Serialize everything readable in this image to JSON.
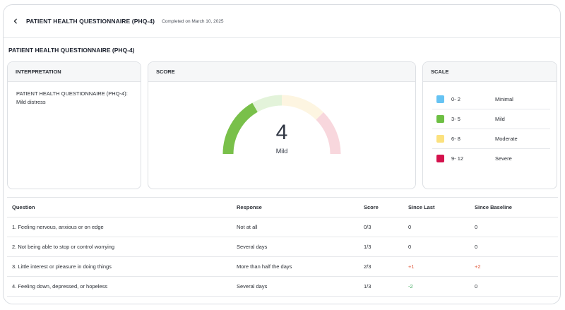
{
  "header": {
    "title": "PATIENT HEALTH QUESTIONNAIRE (PHQ-4)",
    "completed": "Completed on March 10, 2025"
  },
  "section_title": "PATIENT HEALTH QUESTIONNAIRE (PHQ-4)",
  "interpretation": {
    "heading": "INTERPRETATION",
    "text": "PATIENT HEALTH QUESTIONNAIRE (PHQ-4): Mild distress"
  },
  "score": {
    "heading": "SCORE",
    "value": "4",
    "label": "Mild",
    "gauge_max": 12,
    "gauge_segments": [
      {
        "from": 0,
        "to": 3,
        "color": "#dcefd6"
      },
      {
        "from": 3,
        "to": 6,
        "color": "#e3f3da"
      },
      {
        "from": 6,
        "to": 9,
        "color": "#fdf5e1"
      },
      {
        "from": 9,
        "to": 12,
        "color": "#f8d7dd"
      }
    ],
    "fill_color": "#79c04a"
  },
  "scale": {
    "heading": "SCALE",
    "rows": [
      {
        "range": "0- 2",
        "label": "Minimal",
        "color": "#66c3f3"
      },
      {
        "range": "3- 5",
        "label": "Mild",
        "color": "#6dbf43"
      },
      {
        "range": "6- 8",
        "label": "Moderate",
        "color": "#fbe17e"
      },
      {
        "range": "9- 12",
        "label": "Severe",
        "color": "#d4124d"
      }
    ]
  },
  "table": {
    "headers": [
      "Question",
      "Response",
      "Score",
      "Since Last",
      "Since Baseline"
    ],
    "rows": [
      {
        "question": "1. Feeling nervous, anxious or on edge",
        "response": "Not at all",
        "score": "0/3",
        "since_last": "0",
        "since_baseline": "0"
      },
      {
        "question": "2. Not being able to stop or control worrying",
        "response": "Several days",
        "score": "1/3",
        "since_last": "0",
        "since_baseline": "0"
      },
      {
        "question": "3. Little interest or pleasure in doing things",
        "response": "More than half the days",
        "score": "2/3",
        "since_last": "+1",
        "since_baseline": "+2"
      },
      {
        "question": "4. Feeling down, depressed, or hopeless",
        "response": "Several days",
        "score": "1/3",
        "since_last": "-2",
        "since_baseline": "0"
      }
    ]
  }
}
